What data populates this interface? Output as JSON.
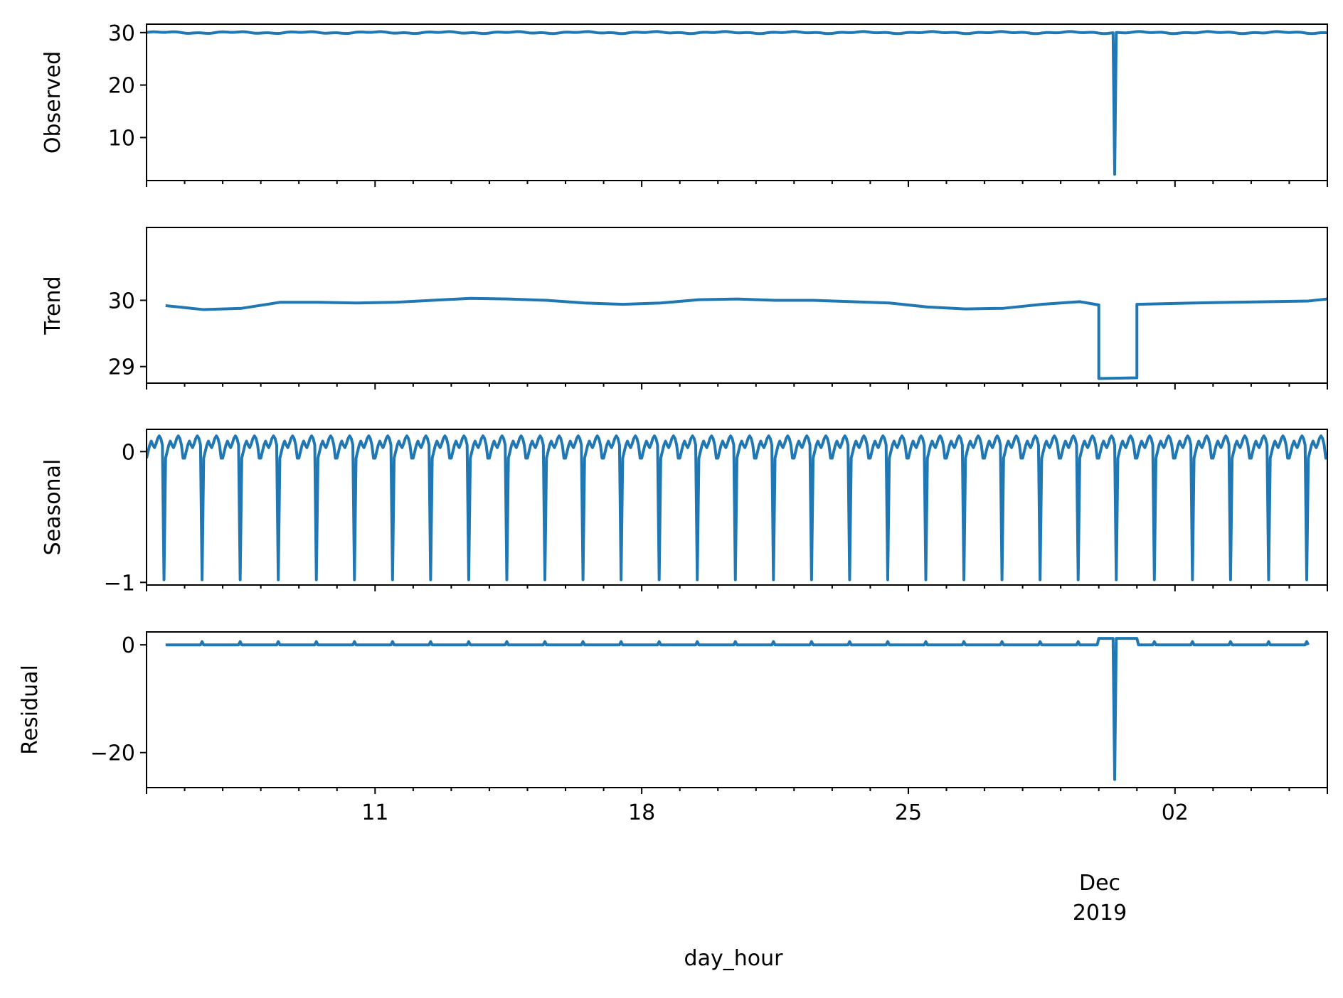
{
  "chart_data": {
    "type": "line",
    "color": "#1f77b4",
    "xlabel": "day_hour",
    "x_range": [
      "2019-11-05",
      "2019-12-06"
    ],
    "x_major_ticks": [
      {
        "date": "2019-11-11",
        "label": "11"
      },
      {
        "date": "2019-11-18",
        "label": "18"
      },
      {
        "date": "2019-11-25",
        "label": "25"
      },
      {
        "date": "2019-12-02",
        "label": "02"
      }
    ],
    "x_annotation": {
      "line1": "Dec",
      "line2": "2019"
    },
    "panels": [
      {
        "name": "observed",
        "ylabel": "Observed",
        "ylim": [
          1.8,
          31.6
        ],
        "yticks": [
          {
            "value": 10,
            "label": "10"
          },
          {
            "value": 20,
            "label": "20"
          },
          {
            "value": 30,
            "label": "30"
          }
        ],
        "series": {
          "base": 30.0,
          "anomalies": [
            {
              "start": "2019-11-30T09:00",
              "end": "2019-11-30T11:00",
              "value": 3.0
            }
          ]
        }
      },
      {
        "name": "trend",
        "ylabel": "Trend",
        "ylim": [
          28.75,
          31.1
        ],
        "yticks": [
          {
            "value": 29,
            "label": "29"
          },
          {
            "value": 30,
            "label": "30"
          }
        ],
        "series": {
          "anchors": [
            [
              "2019-11-05T12:00",
              29.92
            ],
            [
              "2019-11-06T12:00",
              29.86
            ],
            [
              "2019-11-07T12:00",
              29.88
            ],
            [
              "2019-11-08T12:00",
              29.97
            ],
            [
              "2019-11-09T12:00",
              29.97
            ],
            [
              "2019-11-10T12:00",
              29.96
            ],
            [
              "2019-11-11T12:00",
              29.97
            ],
            [
              "2019-11-12T12:00",
              30.0
            ],
            [
              "2019-11-13T12:00",
              30.03
            ],
            [
              "2019-11-14T12:00",
              30.02
            ],
            [
              "2019-11-15T12:00",
              30.0
            ],
            [
              "2019-11-16T12:00",
              29.96
            ],
            [
              "2019-11-17T12:00",
              29.94
            ],
            [
              "2019-11-18T12:00",
              29.96
            ],
            [
              "2019-11-19T12:00",
              30.01
            ],
            [
              "2019-11-20T12:00",
              30.02
            ],
            [
              "2019-11-21T12:00",
              30.0
            ],
            [
              "2019-11-22T12:00",
              30.0
            ],
            [
              "2019-11-23T12:00",
              29.98
            ],
            [
              "2019-11-24T12:00",
              29.96
            ],
            [
              "2019-11-25T12:00",
              29.9
            ],
            [
              "2019-11-26T12:00",
              29.87
            ],
            [
              "2019-11-27T12:00",
              29.88
            ],
            [
              "2019-11-28T12:00",
              29.94
            ],
            [
              "2019-11-29T12:00",
              29.98
            ],
            [
              "2019-11-30T00:00",
              29.93
            ],
            [
              "2019-11-30T00:00",
              28.82
            ],
            [
              "2019-12-01T00:00",
              28.83
            ],
            [
              "2019-12-01T00:00",
              29.94
            ],
            [
              "2019-12-02T12:00",
              29.96
            ],
            [
              "2019-12-03T12:00",
              29.97
            ],
            [
              "2019-12-04T12:00",
              29.98
            ],
            [
              "2019-12-05T12:00",
              29.99
            ],
            [
              "2019-12-06T00:00",
              30.02
            ]
          ]
        }
      },
      {
        "name": "seasonal",
        "ylabel": "Seasonal",
        "ylim": [
          -1.02,
          0.17
        ],
        "yticks": [
          {
            "value": -1,
            "label": "−1"
          },
          {
            "value": 0,
            "label": "0"
          }
        ],
        "series": {
          "period_hours": 24,
          "daily_pattern": [
            -0.05,
            0.0,
            0.05,
            0.08,
            0.05,
            0.03,
            0.06,
            0.1,
            0.12,
            0.1,
            0.05,
            -0.98,
            -0.05,
            0.0,
            0.05,
            0.08,
            0.05,
            0.03,
            0.06,
            0.1,
            0.12,
            0.1,
            0.05,
            -0.05
          ]
        }
      },
      {
        "name": "residual",
        "ylabel": "Residual",
        "ylim": [
          -26.5,
          2.4
        ],
        "yticks": [
          {
            "value": -20,
            "label": "−20"
          },
          {
            "value": 0,
            "label": "0"
          }
        ],
        "series": {
          "base": 0.0,
          "daily_spike": 0.6,
          "plateau": {
            "start": "2019-11-30T00:00",
            "end": "2019-12-01T00:00",
            "value": 1.2
          },
          "anomaly": {
            "time": "2019-11-30T10:00",
            "value": -25.0
          }
        }
      }
    ]
  }
}
